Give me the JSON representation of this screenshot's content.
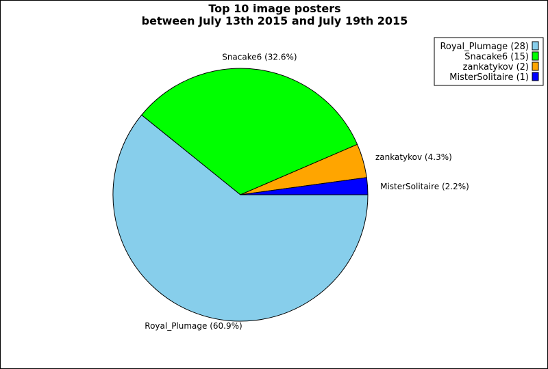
{
  "chart_data": {
    "type": "pie",
    "title": "Top 10 image posters",
    "subtitle": "between July 13th 2015 and July 19th 2015",
    "legend_position": "top-right",
    "slices": [
      {
        "name": "Royal_Plumage",
        "value": 28,
        "percent": 60.9,
        "color": "#87CEEB",
        "label": "Royal_Plumage (60.9%)",
        "legend": "Royal_Plumage (28)"
      },
      {
        "name": "Snacake6",
        "value": 15,
        "percent": 32.6,
        "color": "#00FF00",
        "label": "Snacake6 (32.6%)",
        "legend": "Snacake6 (15)"
      },
      {
        "name": "zankatykov",
        "value": 2,
        "percent": 4.3,
        "color": "#FFA500",
        "label": "zankatykov (4.3%)",
        "legend": "zankatykov (2)"
      },
      {
        "name": "MisterSolitaire",
        "value": 1,
        "percent": 2.2,
        "color": "#0000FF",
        "label": "MisterSolitaire (2.2%)",
        "legend": "MisterSolitaire (1)"
      }
    ]
  }
}
